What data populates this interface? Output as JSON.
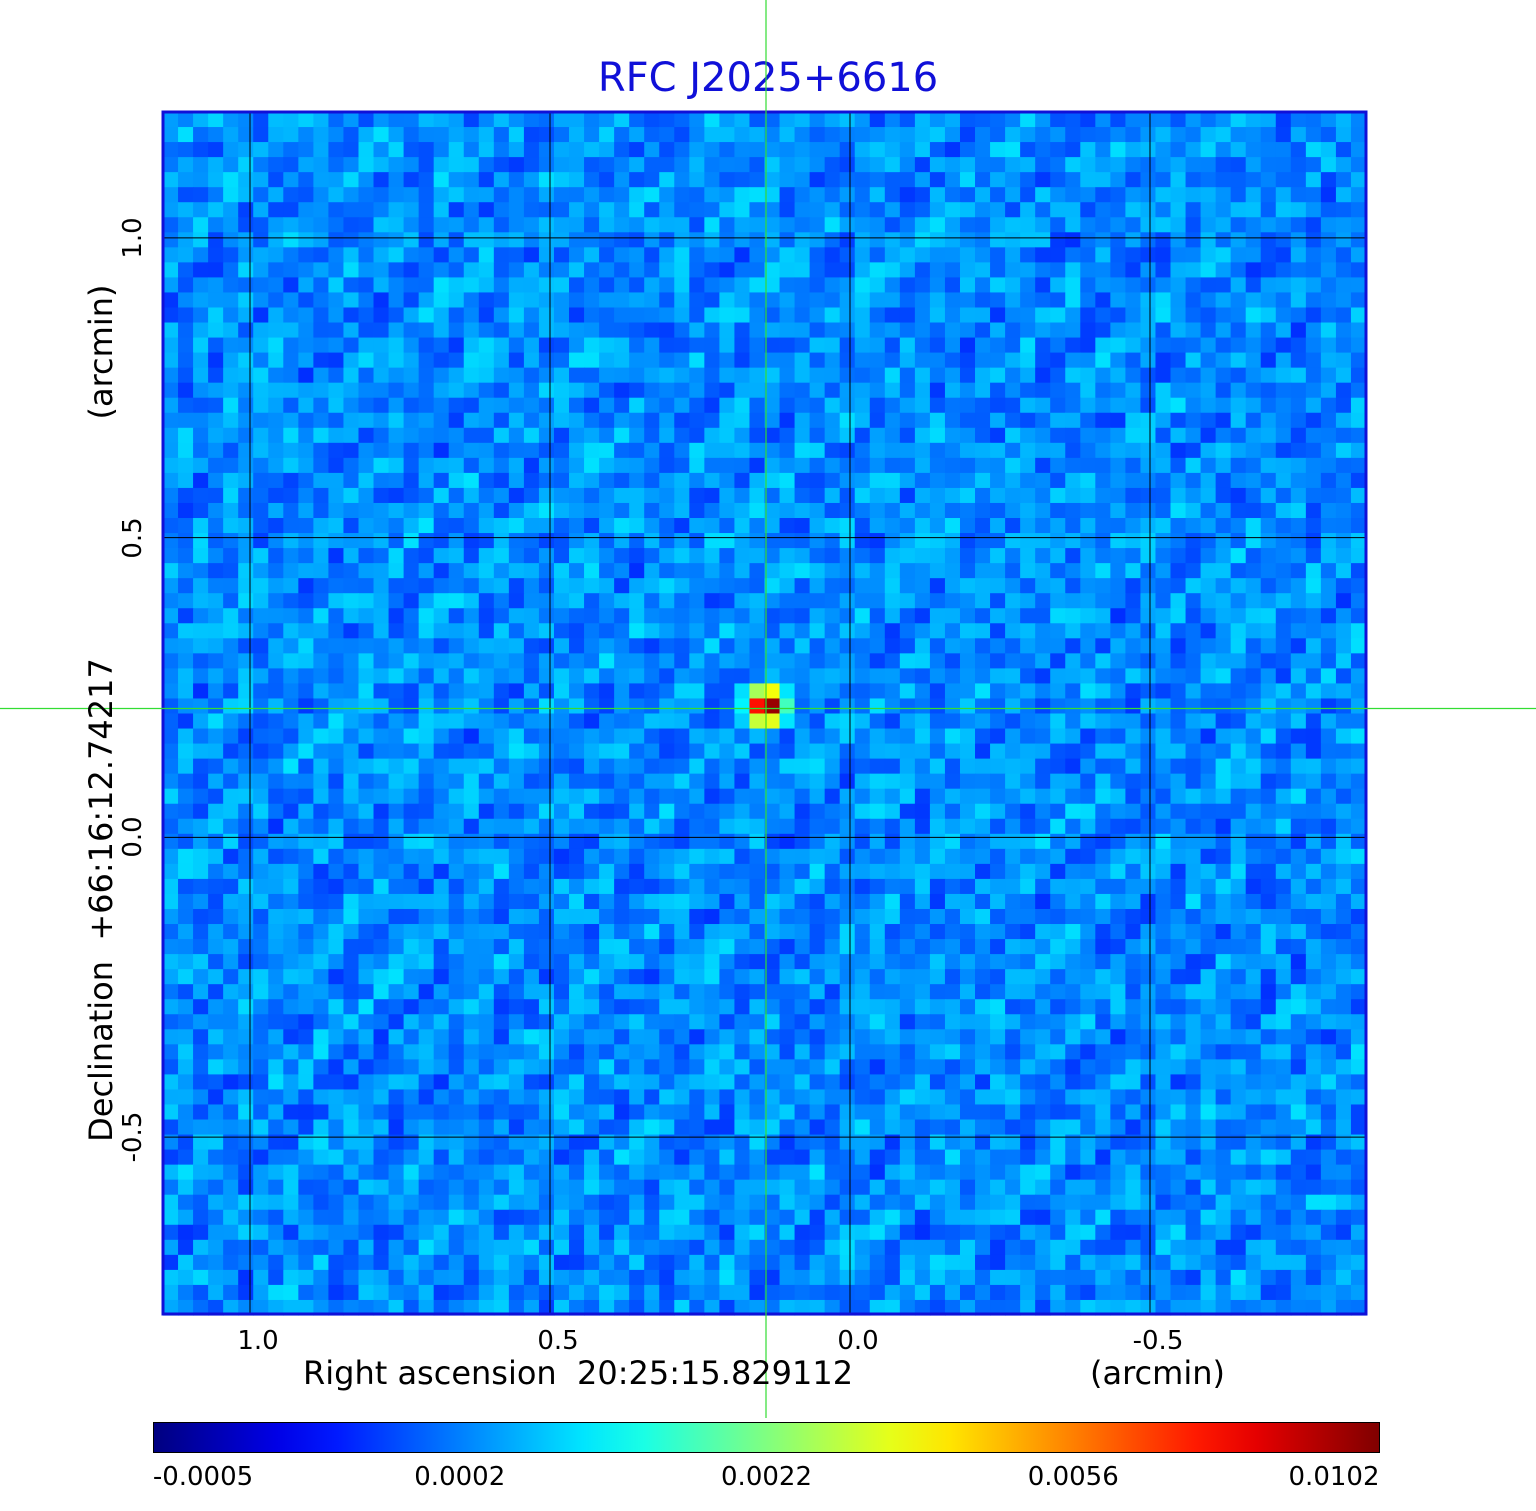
{
  "chart_data": {
    "type": "heatmap",
    "title": "RFC J2025+6616",
    "xlabel": "Right ascension  20:25:15.829112",
    "xunit": "(arcmin)",
    "ylabel": "Declination  +66:16:12.74217",
    "yunit": "(arcmin)",
    "x_ticks": [
      "1.0",
      "0.5",
      "0.0",
      "-0.5"
    ],
    "x_tick_values": [
      1.0,
      0.5,
      0.0,
      -0.5
    ],
    "y_ticks": [
      "1.0",
      "0.5",
      "0.0",
      "-0.5"
    ],
    "y_tick_values": [
      1.0,
      0.5,
      0.0,
      -0.5
    ],
    "xlim": [
      1.145,
      -0.86
    ],
    "ylim": [
      -0.795,
      1.21
    ],
    "grid": true,
    "source_peak": {
      "ra_offset_arcmin": 0.14,
      "dec_offset_arcmin": 0.22,
      "value": 0.0102
    },
    "crosshair": {
      "ra_offset_arcmin": 0.14,
      "dec_offset_arcmin": 0.215
    },
    "colorbar": {
      "colormap": "jet",
      "tick_labels": [
        "-0.0005",
        "0.0002",
        "0.0022",
        "0.0056",
        "0.0102"
      ],
      "range": [
        -0.0005,
        0.0102
      ]
    },
    "colors": {
      "title": "#1010d8",
      "frame": "#1010d8",
      "grid": "#000000",
      "crosshair": "#33dd33"
    }
  }
}
